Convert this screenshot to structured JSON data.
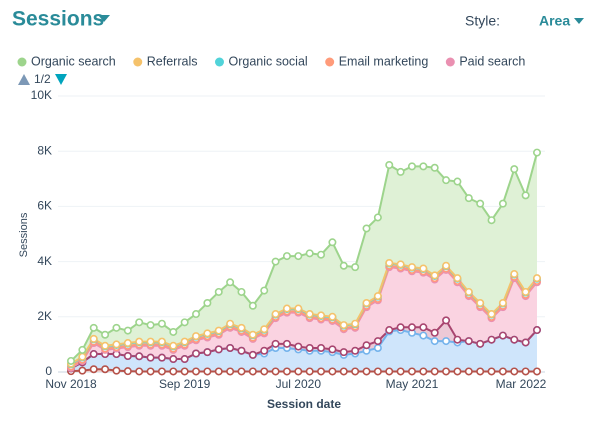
{
  "chart_data": {
    "type": "area",
    "title": "Sessions",
    "xlabel": "Session date",
    "ylabel": "Sessions",
    "categories": [
      "Nov 2018",
      null,
      null,
      null,
      null,
      null,
      null,
      null,
      null,
      null,
      "Sep 2019",
      null,
      null,
      null,
      null,
      null,
      null,
      null,
      null,
      null,
      "Jul 2020",
      null,
      null,
      null,
      null,
      null,
      null,
      null,
      null,
      null,
      "May 2021",
      null,
      null,
      null,
      null,
      null,
      null,
      null,
      null,
      null,
      "Mar 2022",
      null
    ],
    "ylim": [
      0,
      10000
    ],
    "yticks": [
      0,
      {
        "value": 2000,
        "label": "2K"
      },
      {
        "value": 4000,
        "label": "4K"
      },
      {
        "value": 6000,
        "label": "6K"
      },
      {
        "value": 8000,
        "label": "8K"
      },
      {
        "value": 10000,
        "label": "10K"
      }
    ],
    "stacked": true,
    "grid": true,
    "series": [
      {
        "name": "Organic search",
        "color": "#9dd48c",
        "fill": "#dff1d6",
        "values": [
          100,
          250,
          400,
          400,
          600,
          450,
          700,
          600,
          650,
          500,
          700,
          800,
          1100,
          1400,
          1500,
          1300,
          1050,
          1400,
          1900,
          1900,
          1900,
          2200,
          2200,
          2700,
          2150,
          2050,
          2700,
          2850,
          3550,
          3350,
          3650,
          3700,
          3900,
          3100,
          3500,
          3400,
          3600,
          3400,
          3600,
          3800,
          3500,
          4550
        ]
      },
      {
        "name": "Referrals",
        "color": "#f5c26b",
        "fill": "#fbe8c4",
        "values": [
          20,
          20,
          20,
          20,
          20,
          20,
          20,
          20,
          20,
          20,
          20,
          20,
          20,
          20,
          20,
          20,
          20,
          20,
          20,
          20,
          20,
          20,
          20,
          20,
          20,
          20,
          20,
          20,
          20,
          20,
          20,
          20,
          20,
          20,
          20,
          20,
          20,
          20,
          20,
          20,
          20,
          20
        ]
      },
      {
        "name": "Organic social",
        "color": "#51d3d9",
        "fill": "#c9f0f2",
        "values": [
          80,
          80,
          80,
          80,
          80,
          80,
          80,
          80,
          80,
          80,
          80,
          80,
          80,
          80,
          80,
          80,
          80,
          80,
          80,
          80,
          80,
          80,
          80,
          80,
          80,
          80,
          80,
          80,
          80,
          80,
          80,
          80,
          80,
          80,
          80,
          80,
          80,
          80,
          80,
          80,
          80,
          80
        ]
      },
      {
        "name": "Email marketing",
        "color": "#ff9b7a",
        "fill": "#ffdccf",
        "values": [
          50,
          50,
          50,
          50,
          50,
          50,
          50,
          50,
          50,
          50,
          50,
          50,
          50,
          50,
          50,
          50,
          50,
          50,
          50,
          50,
          50,
          50,
          50,
          50,
          50,
          50,
          50,
          50,
          50,
          50,
          50,
          50,
          50,
          50,
          50,
          50,
          50,
          50,
          50,
          50,
          50,
          50
        ]
      },
      {
        "name": "Paid search",
        "color": "#ea90b1",
        "fill": "#fad3e1",
        "values": [
          20,
          50,
          400,
          150,
          200,
          320,
          380,
          430,
          430,
          330,
          480,
          480,
          530,
          530,
          730,
          680,
          580,
          630,
          930,
          1130,
          1230,
          1080,
          1030,
          1030,
          830,
          830,
          1380,
          1480,
          2280,
          2130,
          2030,
          1980,
          1930,
          1830,
          2080,
          1630,
          1330,
          780,
          1030,
          2230,
          1680,
          1730
        ]
      },
      {
        "color": "#a8456f",
        "fill": "#ecc9d6",
        "values": [
          0,
          0,
          0,
          0,
          0,
          0,
          0,
          0,
          0,
          0,
          0,
          0,
          0,
          0,
          0,
          0,
          0,
          100,
          150,
          150,
          100,
          100,
          100,
          100,
          100,
          100,
          200,
          250,
          50,
          100,
          200,
          300,
          300,
          750,
          100,
          0,
          0,
          0,
          0,
          0,
          0,
          0
        ]
      },
      {
        "color": "#74b3ec",
        "fill": "#cfe5fb",
        "values": [
          100,
          300,
          550,
          550,
          600,
          550,
          550,
          500,
          500,
          450,
          450,
          650,
          700,
          800,
          850,
          750,
          600,
          650,
          850,
          850,
          800,
          750,
          750,
          700,
          600,
          650,
          750,
          850,
          1450,
          1500,
          1400,
          1300,
          1100,
          1100,
          1050,
          1100,
          1000,
          1150,
          1300,
          1150,
          1050,
          1500
        ]
      },
      {
        "color": "#b5524a",
        "fill": "#f0d0cc",
        "values": [
          30,
          50,
          100,
          100,
          50,
          30,
          20,
          20,
          20,
          20,
          20,
          20,
          20,
          20,
          20,
          20,
          20,
          20,
          20,
          20,
          20,
          20,
          20,
          20,
          20,
          20,
          20,
          20,
          20,
          20,
          20,
          20,
          20,
          20,
          20,
          20,
          20,
          20,
          20,
          20,
          20,
          20
        ]
      }
    ]
  },
  "controls": {
    "style_label": "Style:",
    "style_value": "Area",
    "legend_page": "1/2"
  }
}
